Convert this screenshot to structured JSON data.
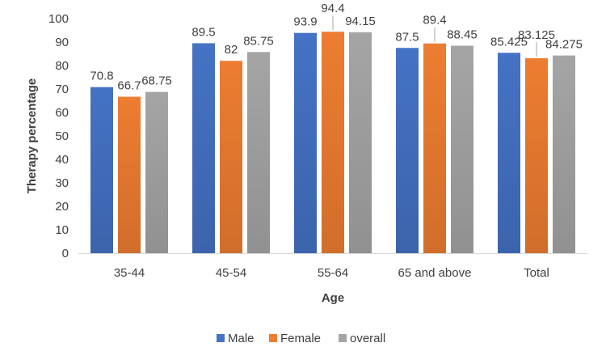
{
  "chart_data": {
    "type": "bar",
    "title": "",
    "xlabel": "Age",
    "ylabel": "Therapy  percentage",
    "ylim": [
      0,
      100
    ],
    "ytick_step": 10,
    "grid": false,
    "legend_position": "bottom",
    "categories": [
      "35-44",
      "45-54",
      "55-64",
      "65 and above",
      "Total"
    ],
    "series": [
      {
        "name": "Male",
        "color": "#4472C4",
        "values": [
          70.8,
          89.5,
          93.9,
          87.5,
          85.425
        ]
      },
      {
        "name": "Female",
        "color": "#ED7D31",
        "values": [
          66.7,
          82,
          94.4,
          89.4,
          83.125
        ]
      },
      {
        "name": "overall",
        "color": "#A5A5A5",
        "values": [
          68.75,
          85.75,
          94.15,
          88.45,
          84.275
        ]
      }
    ]
  }
}
